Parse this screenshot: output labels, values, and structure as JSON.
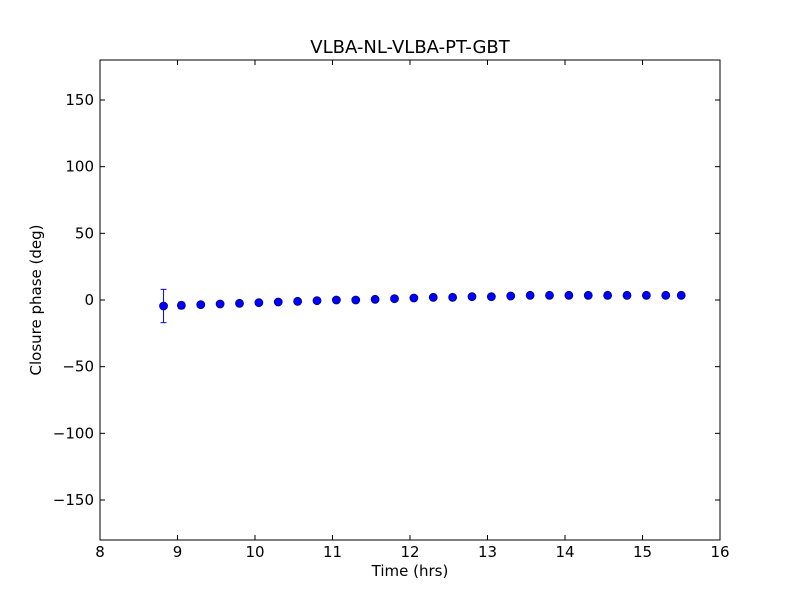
{
  "chart_data": {
    "type": "scatter",
    "title": "VLBA-NL-VLBA-PT-GBT",
    "xlabel": "Time (hrs)",
    "ylabel": "Closure phase (deg)",
    "xlim": [
      8,
      16
    ],
    "ylim": [
      -180,
      180
    ],
    "x_ticks": [
      8,
      9,
      10,
      11,
      12,
      13,
      14,
      15,
      16
    ],
    "y_ticks": [
      -150,
      -100,
      -50,
      0,
      50,
      100,
      150
    ],
    "x_tick_labels": [
      "8",
      "9",
      "10",
      "11",
      "12",
      "13",
      "14",
      "15",
      "16"
    ],
    "y_tick_labels": [
      "−150",
      "−100",
      "−50",
      "0",
      "50",
      "100",
      "150"
    ],
    "grid": false,
    "marker_color": "#0000ff",
    "errorbar_color": "#0000ff",
    "series": [
      {
        "points": [
          {
            "x": 8.82,
            "y": -4.5,
            "err": 12.5
          },
          {
            "x": 9.05,
            "y": -4.0,
            "err": 2.5
          },
          {
            "x": 9.3,
            "y": -3.5,
            "err": 2.0
          },
          {
            "x": 9.55,
            "y": -3.0,
            "err": 1.5
          },
          {
            "x": 9.8,
            "y": -2.5,
            "err": 1.5
          },
          {
            "x": 10.05,
            "y": -2.0,
            "err": 1.5
          },
          {
            "x": 10.3,
            "y": -1.5,
            "err": 1.5
          },
          {
            "x": 10.55,
            "y": -1.0,
            "err": 1.5
          },
          {
            "x": 10.8,
            "y": -0.5,
            "err": 1.5
          },
          {
            "x": 11.05,
            "y": 0.0,
            "err": 1.5
          },
          {
            "x": 11.3,
            "y": 0.0,
            "err": 1.5
          },
          {
            "x": 11.55,
            "y": 0.5,
            "err": 1.5
          },
          {
            "x": 11.8,
            "y": 1.0,
            "err": 1.5
          },
          {
            "x": 12.05,
            "y": 1.5,
            "err": 1.5
          },
          {
            "x": 12.3,
            "y": 2.0,
            "err": 1.5
          },
          {
            "x": 12.55,
            "y": 2.0,
            "err": 1.5
          },
          {
            "x": 12.8,
            "y": 2.5,
            "err": 1.5
          },
          {
            "x": 13.05,
            "y": 2.5,
            "err": 1.5
          },
          {
            "x": 13.3,
            "y": 3.0,
            "err": 1.5
          },
          {
            "x": 13.55,
            "y": 3.5,
            "err": 1.5
          },
          {
            "x": 13.8,
            "y": 3.5,
            "err": 1.5
          },
          {
            "x": 14.05,
            "y": 3.5,
            "err": 1.5
          },
          {
            "x": 14.3,
            "y": 3.5,
            "err": 1.5
          },
          {
            "x": 14.55,
            "y": 3.5,
            "err": 1.5
          },
          {
            "x": 14.8,
            "y": 3.5,
            "err": 1.5
          },
          {
            "x": 15.05,
            "y": 3.5,
            "err": 1.5
          },
          {
            "x": 15.3,
            "y": 3.5,
            "err": 1.5
          },
          {
            "x": 15.5,
            "y": 3.5,
            "err": 1.5
          }
        ]
      }
    ]
  }
}
